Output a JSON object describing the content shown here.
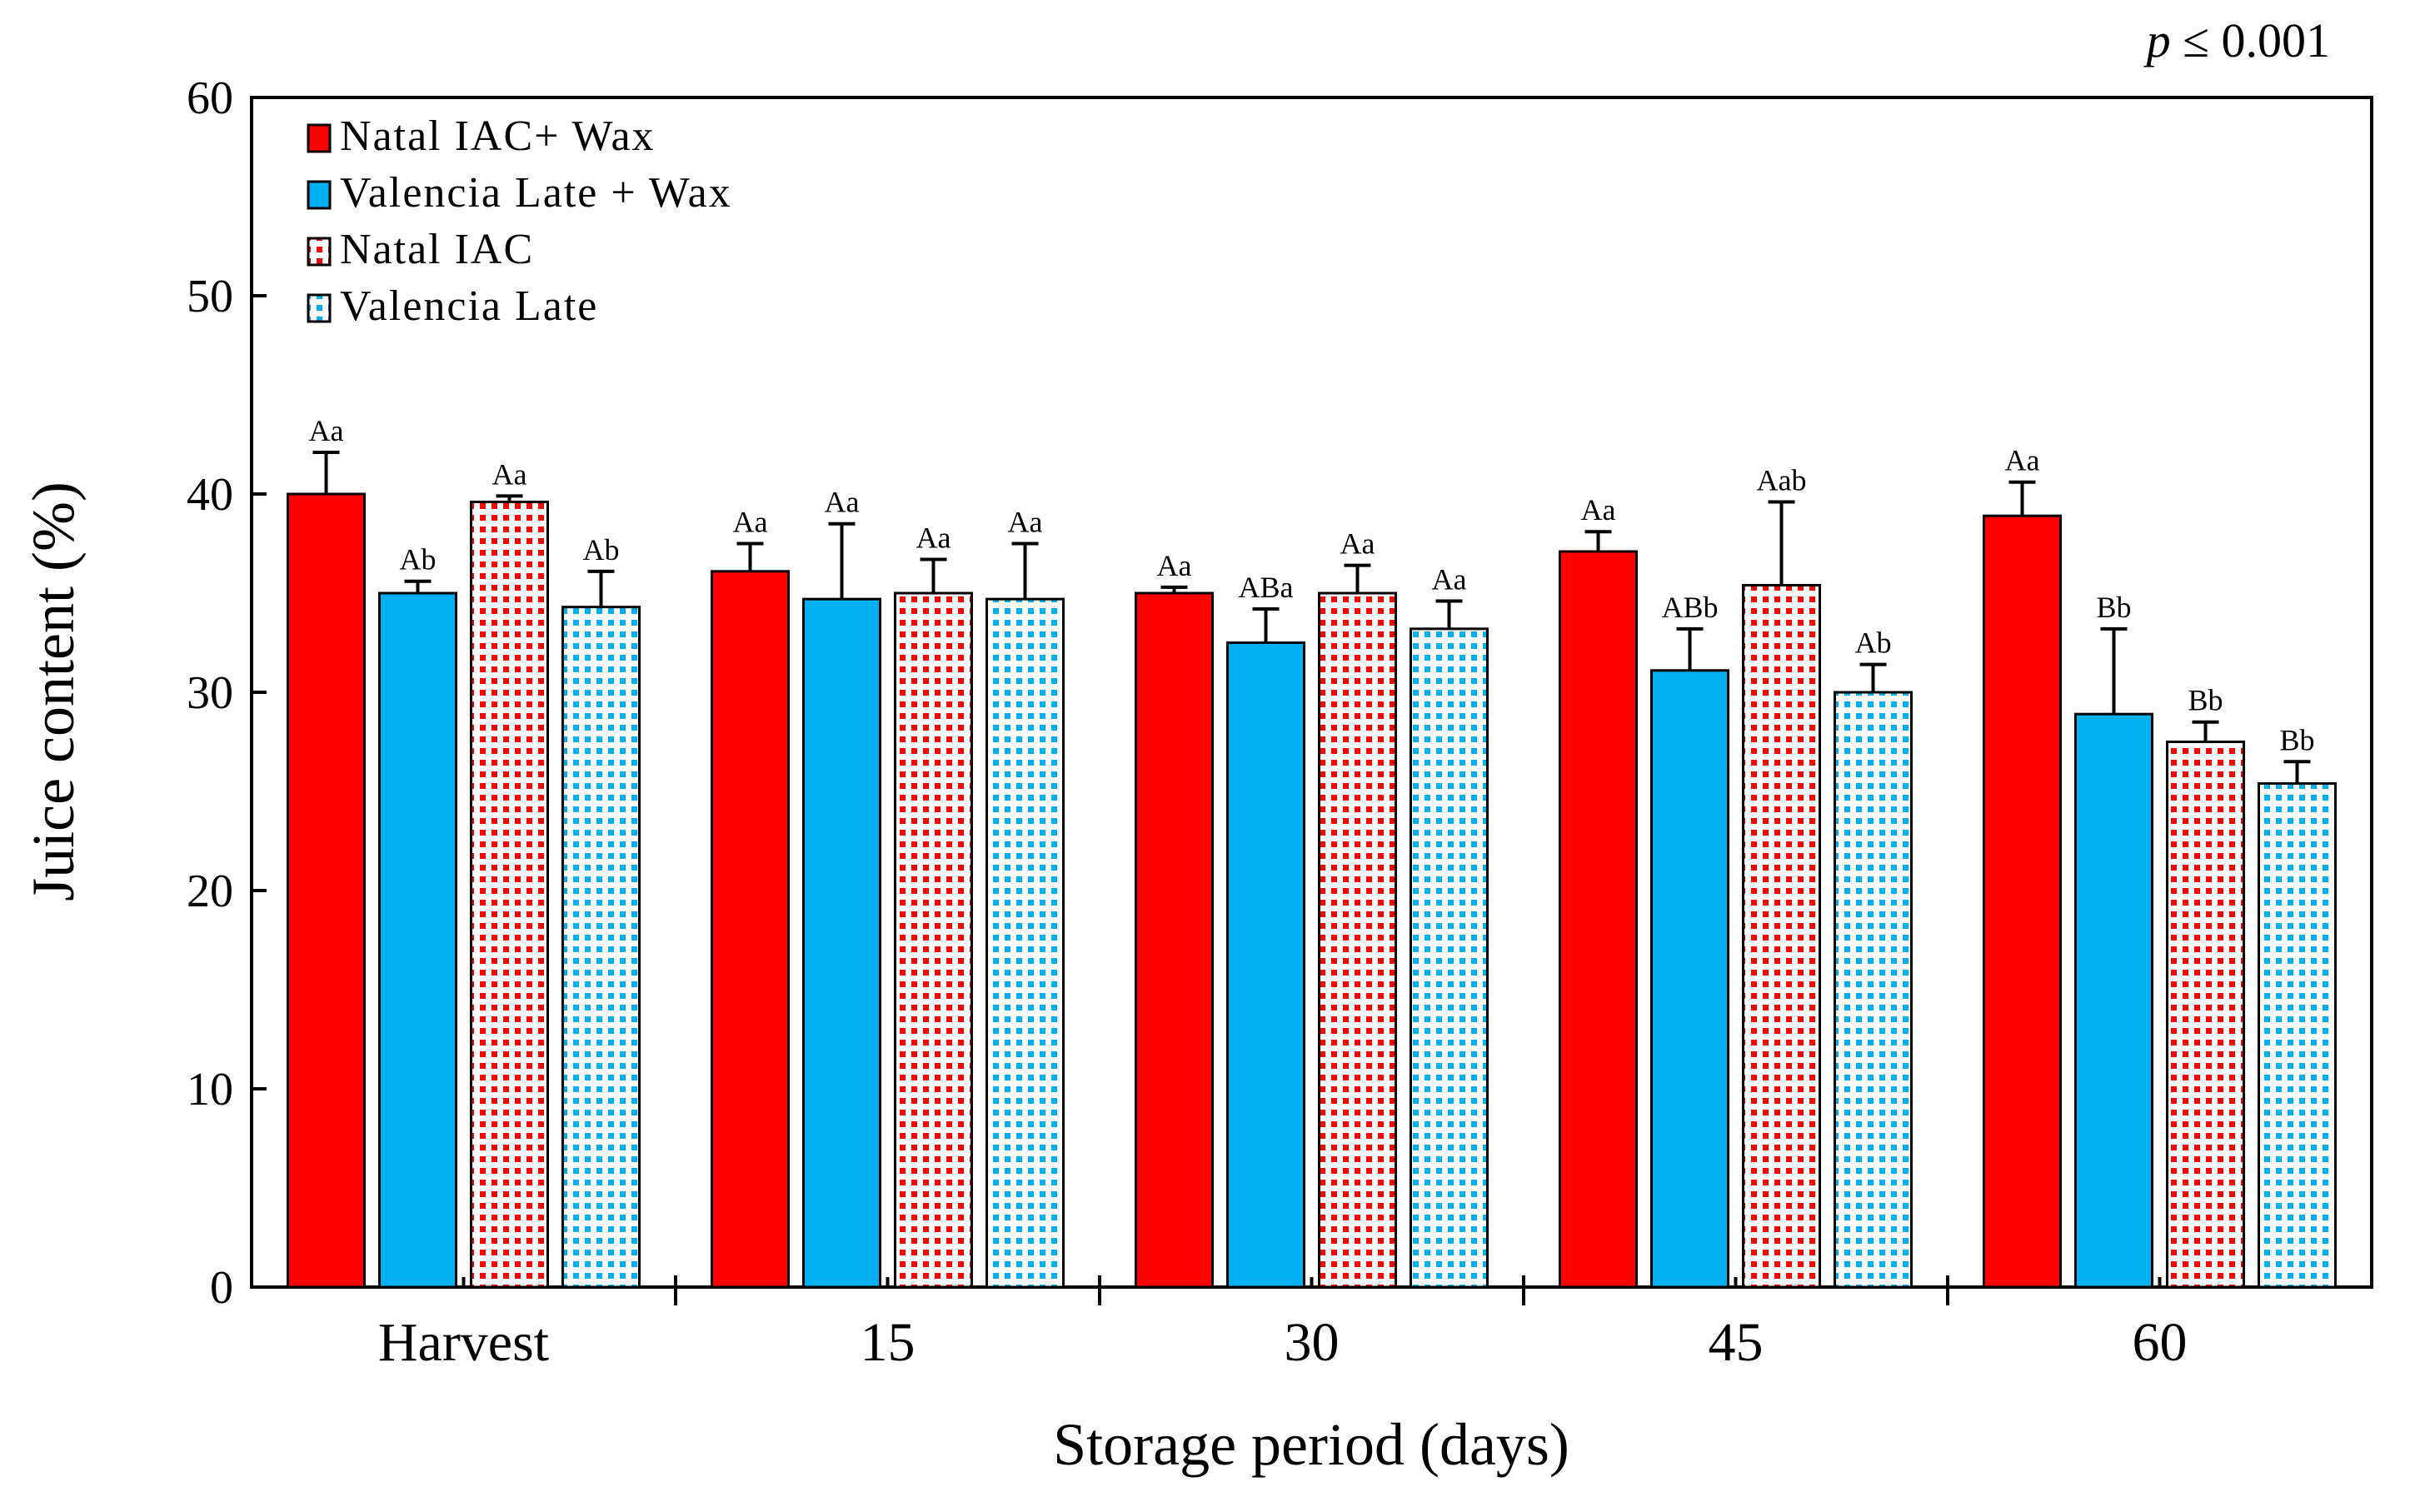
{
  "chart_data": {
    "type": "bar",
    "title": "",
    "xlabel": "Storage period (days)",
    "ylabel": "Juice content (%)",
    "ylim": [
      0,
      60
    ],
    "yticks": [
      0,
      10,
      20,
      30,
      40,
      50,
      60
    ],
    "categories": [
      "Harvest",
      "15",
      "30",
      "45",
      "60"
    ],
    "annotation": {
      "p_italic": "p",
      "rest": " ≤ 0.001"
    },
    "legend_position": "top-left",
    "grid": false,
    "series": [
      {
        "name": "Natal IAC+ Wax",
        "color": "#ff0000",
        "pattern": "solid",
        "values": [
          40.0,
          36.1,
          35.0,
          37.1,
          38.9
        ],
        "errors": [
          2.1,
          1.4,
          0.3,
          1.0,
          1.7
        ],
        "labels": [
          "Aa",
          "Aa",
          "Aa",
          "Aa",
          "Aa"
        ]
      },
      {
        "name": "Valencia Late + Wax",
        "color": "#00b0f0",
        "pattern": "solid",
        "values": [
          35.0,
          34.7,
          32.5,
          31.1,
          28.9
        ],
        "errors": [
          0.6,
          3.8,
          1.7,
          2.1,
          4.3
        ],
        "labels": [
          "Ab",
          "Aa",
          "ABa",
          "ABb",
          "Bb"
        ]
      },
      {
        "name": "Natal IAC",
        "color": "#ff0000",
        "pattern": "dotted",
        "values": [
          39.6,
          35.0,
          35.0,
          35.4,
          27.5
        ],
        "errors": [
          0.3,
          1.7,
          1.4,
          4.2,
          1.0
        ],
        "labels": [
          "Aa",
          "Aa",
          "Aa",
          "Aab",
          "Bb"
        ]
      },
      {
        "name": "Valencia Late",
        "color": "#00b0f0",
        "pattern": "dotted",
        "values": [
          34.3,
          34.7,
          33.2,
          30.0,
          25.4
        ],
        "errors": [
          1.8,
          2.8,
          1.4,
          1.4,
          1.1
        ],
        "labels": [
          "Ab",
          "Aa",
          "Aa",
          "Ab",
          "Bb"
        ]
      }
    ]
  }
}
